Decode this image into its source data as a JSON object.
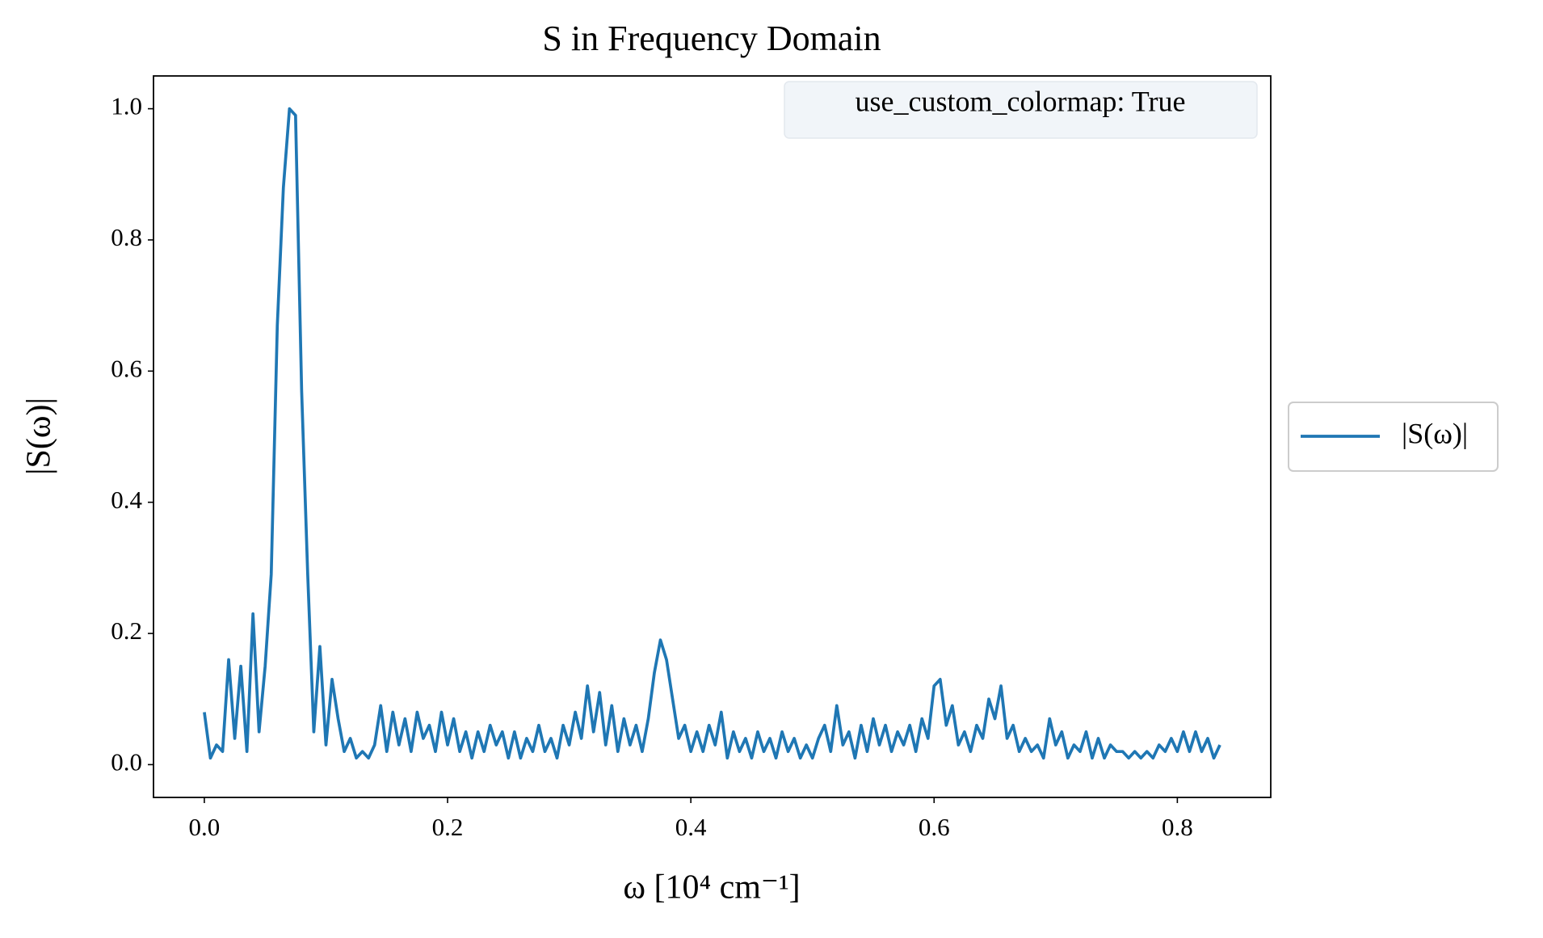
{
  "chart_data": {
    "type": "line",
    "title": "S in Frequency Domain",
    "xlabel": "ω [10⁴ cm⁻¹]",
    "ylabel": "|S(ω)|",
    "annotation": "use_custom_colormap: True",
    "legend": "right",
    "xlim": [
      -0.0418,
      0.8768
    ],
    "ylim": [
      -0.05,
      1.05
    ],
    "xticks": [
      {
        "value": 0,
        "label": "0.0"
      },
      0.2,
      0.4,
      0.6,
      0.8
    ],
    "yticks": [
      {
        "value": 0,
        "label": "0.0"
      },
      0.2,
      0.4,
      0.6,
      0.8,
      {
        "value": 1,
        "label": "1.0"
      }
    ],
    "x": [
      0,
      0.005,
      0.01,
      0.015,
      0.02,
      0.025,
      0.03,
      0.035,
      0.04,
      0.045,
      0.05,
      0.055,
      0.06,
      0.065,
      0.07,
      0.075,
      0.08,
      0.085,
      0.09,
      0.095,
      0.1,
      0.105,
      0.11,
      0.115,
      0.12,
      0.125,
      0.13,
      0.135,
      0.14,
      0.145,
      0.15,
      0.155,
      0.16,
      0.165,
      0.17,
      0.175,
      0.18,
      0.185,
      0.19,
      0.195,
      0.2,
      0.205,
      0.21,
      0.215,
      0.22,
      0.225,
      0.23,
      0.235,
      0.24,
      0.245,
      0.25,
      0.255,
      0.26,
      0.265,
      0.27,
      0.275,
      0.28,
      0.285,
      0.29,
      0.295,
      0.3,
      0.305,
      0.31,
      0.315,
      0.32,
      0.325,
      0.33,
      0.335,
      0.34,
      0.345,
      0.35,
      0.355,
      0.36,
      0.365,
      0.37,
      0.375,
      0.38,
      0.385,
      0.39,
      0.395,
      0.4,
      0.405,
      0.41,
      0.415,
      0.42,
      0.425,
      0.43,
      0.435,
      0.44,
      0.445,
      0.45,
      0.455,
      0.46,
      0.465,
      0.47,
      0.475,
      0.48,
      0.485,
      0.49,
      0.495,
      0.5,
      0.505,
      0.51,
      0.515,
      0.52,
      0.525,
      0.53,
      0.535,
      0.54,
      0.545,
      0.55,
      0.555,
      0.56,
      0.565,
      0.57,
      0.575,
      0.58,
      0.585,
      0.59,
      0.595,
      0.6,
      0.605,
      0.61,
      0.615,
      0.62,
      0.625,
      0.63,
      0.635,
      0.64,
      0.645,
      0.65,
      0.655,
      0.66,
      0.665,
      0.67,
      0.675,
      0.68,
      0.685,
      0.69,
      0.695,
      0.7,
      0.705,
      0.71,
      0.715,
      0.72,
      0.725,
      0.73,
      0.735,
      0.74,
      0.745,
      0.75,
      0.755,
      0.76,
      0.765,
      0.77,
      0.775,
      0.78,
      0.785,
      0.79,
      0.795,
      0.8,
      0.805,
      0.81,
      0.815,
      0.82,
      0.825,
      0.83,
      0.835
    ],
    "series": [
      {
        "name": "|S(ω)|",
        "color": "#1f77b4",
        "values": [
          0.08,
          0.01,
          0.03,
          0.02,
          0.16,
          0.04,
          0.15,
          0.02,
          0.23,
          0.05,
          0.15,
          0.29,
          0.67,
          0.88,
          1.0,
          0.99,
          0.57,
          0.29,
          0.05,
          0.18,
          0.03,
          0.13,
          0.07,
          0.02,
          0.04,
          0.01,
          0.02,
          0.01,
          0.03,
          0.09,
          0.02,
          0.08,
          0.03,
          0.07,
          0.02,
          0.08,
          0.04,
          0.06,
          0.02,
          0.08,
          0.03,
          0.07,
          0.02,
          0.05,
          0.01,
          0.05,
          0.02,
          0.06,
          0.03,
          0.05,
          0.01,
          0.05,
          0.01,
          0.04,
          0.02,
          0.06,
          0.02,
          0.04,
          0.01,
          0.06,
          0.03,
          0.08,
          0.04,
          0.12,
          0.05,
          0.11,
          0.03,
          0.09,
          0.02,
          0.07,
          0.03,
          0.06,
          0.02,
          0.07,
          0.14,
          0.19,
          0.16,
          0.1,
          0.04,
          0.06,
          0.02,
          0.05,
          0.02,
          0.06,
          0.03,
          0.08,
          0.01,
          0.05,
          0.02,
          0.04,
          0.01,
          0.05,
          0.02,
          0.04,
          0.01,
          0.05,
          0.02,
          0.04,
          0.01,
          0.03,
          0.01,
          0.04,
          0.06,
          0.02,
          0.09,
          0.03,
          0.05,
          0.01,
          0.06,
          0.02,
          0.07,
          0.03,
          0.06,
          0.02,
          0.05,
          0.03,
          0.06,
          0.02,
          0.07,
          0.04,
          0.12,
          0.13,
          0.06,
          0.09,
          0.03,
          0.05,
          0.02,
          0.06,
          0.04,
          0.1,
          0.07,
          0.12,
          0.04,
          0.06,
          0.02,
          0.04,
          0.02,
          0.03,
          0.01,
          0.07,
          0.03,
          0.05,
          0.01,
          0.03,
          0.02,
          0.05,
          0.01,
          0.04,
          0.01,
          0.03,
          0.02,
          0.02,
          0.01,
          0.02,
          0.01,
          0.02,
          0.01,
          0.03,
          0.02,
          0.04,
          0.02,
          0.05,
          0.02,
          0.05,
          0.02,
          0.04,
          0.01,
          0.03
        ]
      }
    ]
  }
}
